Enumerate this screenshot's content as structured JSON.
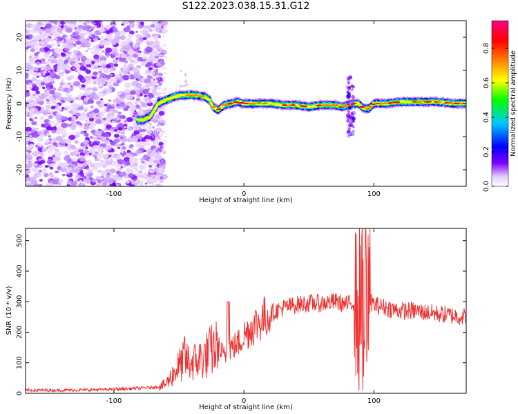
{
  "title": "S122.2023.038.15.31.G12",
  "chart_data": [
    {
      "type": "heatmap",
      "xlabel": "Height of straight line (km)",
      "ylabel": "Frequency (Hz)",
      "xlim": [
        -168,
        171
      ],
      "ylim": [
        -25,
        25
      ],
      "xticks": [
        -100,
        0,
        100
      ],
      "yticks": [
        20,
        10,
        0,
        -10,
        -20
      ],
      "colorbar": {
        "label": "Normalized spectral amplitude",
        "range": [
          0,
          0.96
        ],
        "ticks": [
          0.0,
          0.2,
          0.4,
          0.6,
          0.8
        ],
        "colors": [
          "#ffffff",
          "#e6c8ff",
          "#7a00ff",
          "#0000ff",
          "#00c8ff",
          "#00ff00",
          "#ffff00",
          "#ff8000",
          "#ff0000",
          "#ff0080"
        ]
      },
      "noise_region_x": [
        -168,
        -65
      ],
      "ridge": {
        "x": [
          -82,
          -78,
          -72,
          -66,
          -60,
          -54,
          -48,
          -42,
          -36,
          -30,
          -26,
          -24,
          -20,
          -15,
          -10,
          -5,
          0,
          10,
          20,
          30,
          40,
          50,
          60,
          70,
          76,
          80,
          84,
          88,
          92,
          96,
          100,
          110,
          120,
          130,
          140,
          150,
          160,
          171
        ],
        "y": [
          -5,
          -5,
          -4,
          0,
          1,
          2,
          2.5,
          2.5,
          2.5,
          2,
          1,
          -1,
          -2,
          -0.5,
          0,
          0.5,
          0,
          0,
          0,
          -0.5,
          -0.5,
          -1,
          -0.5,
          -0.5,
          -1,
          -0.5,
          0,
          0,
          -1.5,
          -1.5,
          0,
          0,
          0.5,
          0.5,
          0.5,
          0.5,
          0,
          0
        ]
      },
      "disturbance": {
        "x": 82,
        "y_range": [
          -10,
          8
        ]
      }
    },
    {
      "type": "line",
      "xlabel": "Height of straight line (km)",
      "ylabel": "SNR (10 * v/v)",
      "xlim": [
        -168,
        171
      ],
      "ylim": [
        0,
        540
      ],
      "xticks": [
        -100,
        0,
        100
      ],
      "yticks": [
        0,
        100,
        200,
        300,
        400,
        500
      ],
      "series": [
        {
          "color": "#ee3333",
          "x": [
            -168,
            -140,
            -110,
            -90,
            -75,
            -65,
            -60,
            -55,
            -50,
            -45,
            -40,
            -35,
            -30,
            -25,
            -20,
            -15,
            -10,
            -5,
            0,
            10,
            20,
            30,
            40,
            50,
            60,
            70,
            80,
            85,
            88,
            90,
            92,
            95,
            100,
            110,
            120,
            130,
            140,
            150,
            160,
            171
          ],
          "y": [
            10,
            10,
            12,
            15,
            18,
            22,
            30,
            60,
            90,
            110,
            100,
            110,
            120,
            140,
            150,
            120,
            150,
            160,
            190,
            230,
            260,
            280,
            290,
            295,
            295,
            300,
            290,
            300,
            280,
            300,
            290,
            310,
            290,
            280,
            270,
            270,
            265,
            260,
            255,
            250
          ]
        }
      ]
    }
  ]
}
